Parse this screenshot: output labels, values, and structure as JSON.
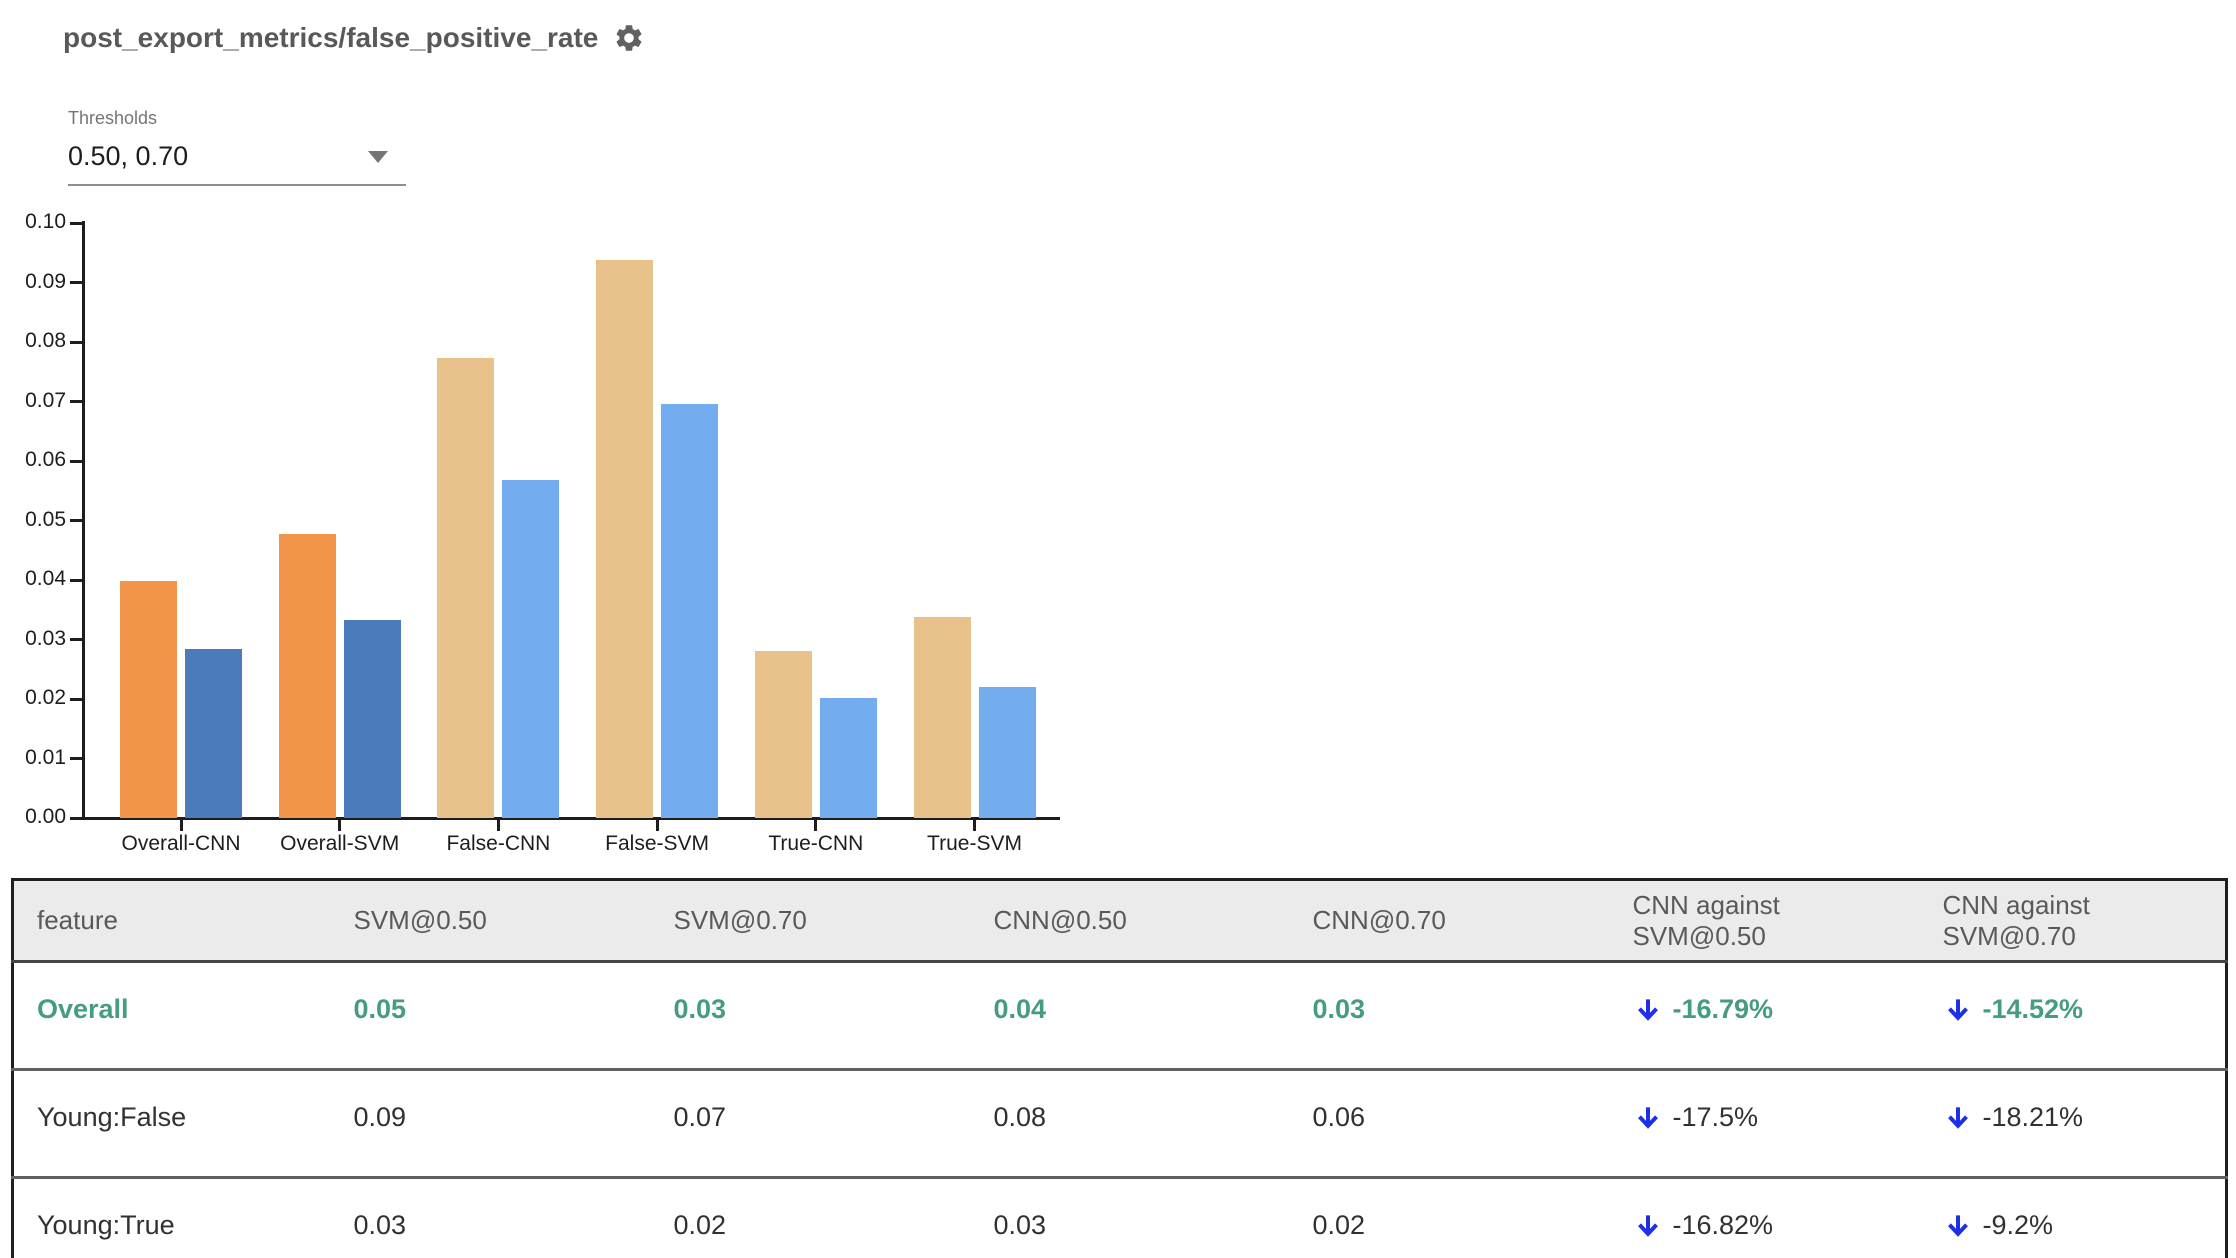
{
  "header": {
    "title": "post_export_metrics/false_positive_rate"
  },
  "thresholds": {
    "label": "Thresholds",
    "value": "0.50, 0.70"
  },
  "chart_data": {
    "type": "bar",
    "title": "",
    "xlabel": "",
    "ylabel": "",
    "categories": [
      "Overall-CNN",
      "Overall-SVM",
      "False-CNN",
      "False-SVM",
      "True-CNN",
      "True-SVM"
    ],
    "series": [
      {
        "name": "0.50",
        "values": [
          0.0398,
          0.0478,
          0.0773,
          0.0938,
          0.0281,
          0.0338
        ]
      },
      {
        "name": "0.70",
        "values": [
          0.0284,
          0.0333,
          0.0568,
          0.0695,
          0.0201,
          0.0221
        ]
      }
    ],
    "ylim": [
      0,
      0.1
    ],
    "yticks": [
      "0.00",
      "0.01",
      "0.02",
      "0.03",
      "0.04",
      "0.05",
      "0.06",
      "0.07",
      "0.08",
      "0.09",
      "0.10"
    ],
    "grid": false,
    "legend": "none",
    "highlight_categories": [
      0,
      1
    ],
    "colors": {
      "t50_highlight": "#F0954A",
      "t70_highlight": "#4C7BBB",
      "t50_muted": "#E9C18B",
      "t70_muted": "#74ADEF"
    }
  },
  "table": {
    "columns": [
      "feature",
      "SVM@0.50",
      "SVM@0.70",
      "CNN@0.50",
      "CNN@0.70",
      "CNN against SVM@0.50",
      "CNN against SVM@0.70"
    ],
    "rows": [
      {
        "feature": "Overall",
        "values": [
          "0.05",
          "0.03",
          "0.04",
          "0.03"
        ],
        "deltas": [
          {
            "direction": "down",
            "label": "-16.79%"
          },
          {
            "direction": "down",
            "label": "-14.52%"
          }
        ],
        "highlighted": true
      },
      {
        "feature": "Young:False",
        "values": [
          "0.09",
          "0.07",
          "0.08",
          "0.06"
        ],
        "deltas": [
          {
            "direction": "down",
            "label": "-17.5%"
          },
          {
            "direction": "down",
            "label": "-18.21%"
          }
        ],
        "highlighted": false
      },
      {
        "feature": "Young:True",
        "values": [
          "0.03",
          "0.02",
          "0.03",
          "0.02"
        ],
        "deltas": [
          {
            "direction": "down",
            "label": "-16.82%"
          },
          {
            "direction": "down",
            "label": "-9.2%"
          }
        ],
        "highlighted": false
      }
    ],
    "colors": {
      "highlight_text": "#469C7E",
      "normal_text": "#2F3133",
      "arrow": "#1E2FE8",
      "header_bg": "#EBEBEB"
    }
  }
}
